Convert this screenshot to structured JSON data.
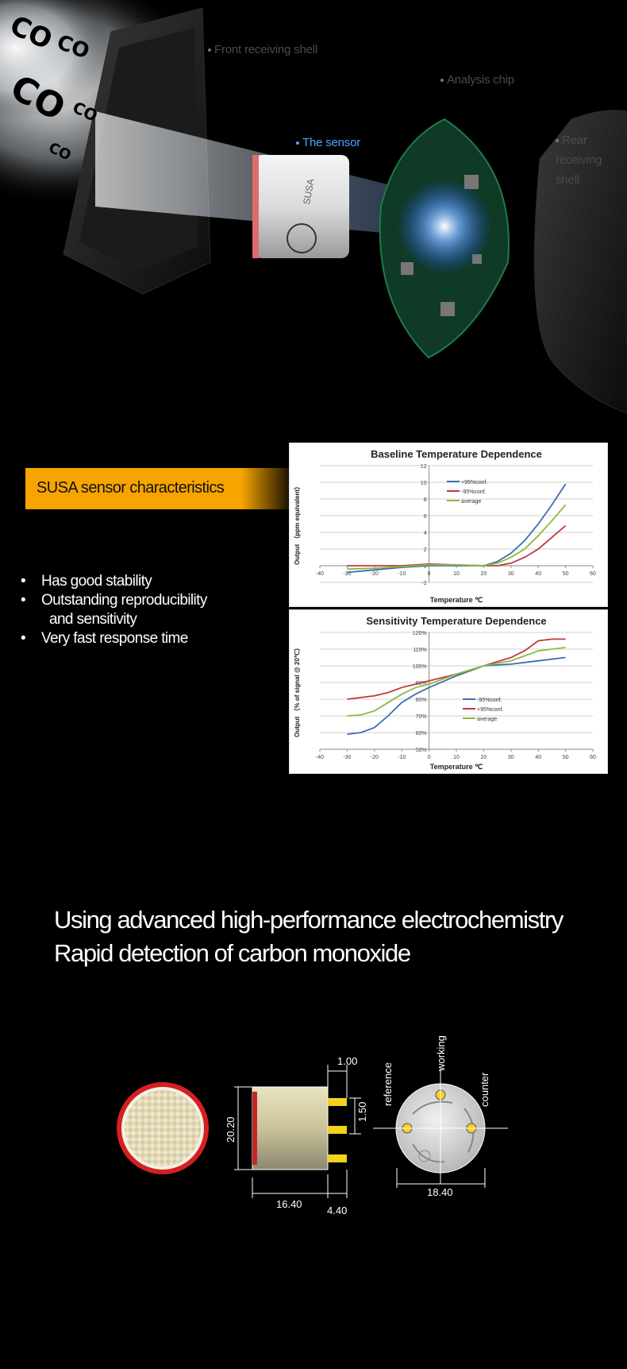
{
  "hero": {
    "callouts": {
      "front_shell": "Front receiving shell",
      "analysis_chip": "Analysis chip",
      "sensor": "The sensor",
      "rear_shell": "Rear receiving shell"
    },
    "gas_labels": [
      "CO",
      "CO",
      "CO",
      "CO",
      "CO"
    ],
    "sensor_brand": "SUSA",
    "highlight_color": "#4aa3ff"
  },
  "characteristics": {
    "banner": "SUSA sensor characteristics",
    "banner_color": "#f7a400",
    "features": [
      "Has good stability",
      "Outstanding reproducibility",
      "and sensitivity",
      "Very fast response time"
    ]
  },
  "chart_data": [
    {
      "type": "line",
      "title": "Baseline Temperature Dependence",
      "xlabel": "Temperature ℃",
      "ylabel": "Output （ppm equivalent）",
      "xlim": [
        -40,
        60
      ],
      "ylim": [
        -2,
        12
      ],
      "xticks": [
        "-40",
        "-30",
        "-20",
        "-10",
        "0",
        "10",
        "20",
        "30",
        "40",
        "50",
        "60"
      ],
      "yticks": [
        "-2",
        "0",
        "2",
        "4",
        "6",
        "8",
        "10",
        "12"
      ],
      "grid": true,
      "legend_position": "upper-middle",
      "series": [
        {
          "name": "+95%conf.",
          "color": "#3a6fb0",
          "x": [
            -30,
            -20,
            -10,
            0,
            10,
            20,
            25,
            30,
            35,
            40,
            45,
            50
          ],
          "y": [
            -0.8,
            -0.5,
            -0.2,
            0,
            0,
            0,
            0.5,
            1.5,
            3,
            5,
            7.3,
            9.8
          ]
        },
        {
          "name": "-95%conf.",
          "color": "#c0393b",
          "x": [
            -30,
            -20,
            -10,
            0,
            10,
            20,
            25,
            30,
            35,
            40,
            45,
            50
          ],
          "y": [
            0,
            0,
            0,
            0.2,
            0.1,
            0,
            0,
            0.3,
            1,
            2,
            3.4,
            4.8
          ]
        },
        {
          "name": "average",
          "color": "#8cba3e",
          "x": [
            -30,
            -20,
            -10,
            0,
            10,
            20,
            25,
            30,
            35,
            40,
            45,
            50
          ],
          "y": [
            -0.4,
            -0.3,
            -0.1,
            0.1,
            0.1,
            0,
            0.3,
            1,
            2,
            3.6,
            5.4,
            7.3
          ]
        }
      ]
    },
    {
      "type": "line",
      "title": "Sensitivity Temperature Dependence",
      "xlabel": "Temperature ℃",
      "ylabel": "Output （% of signal @ 20℃）",
      "xlim": [
        -40,
        60
      ],
      "ylim": [
        50,
        120
      ],
      "xticks": [
        "-40",
        "-30",
        "-20",
        "-10",
        "0",
        "10",
        "20",
        "30",
        "40",
        "50",
        "60"
      ],
      "yticks": [
        "50%",
        "60%",
        "70%",
        "80%",
        "90%",
        "100%",
        "110%",
        "120%"
      ],
      "grid": true,
      "legend_position": "right-middle",
      "series": [
        {
          "name": "-95%conf.",
          "color": "#3a6fb0",
          "x": [
            -30,
            -25,
            -20,
            -15,
            -10,
            -5,
            0,
            10,
            20,
            30,
            40,
            50
          ],
          "y": [
            59,
            60,
            63,
            70,
            78,
            83,
            87,
            94,
            100,
            101,
            103,
            105
          ]
        },
        {
          "name": "+95%conf.",
          "color": "#c0393b",
          "x": [
            -30,
            -25,
            -20,
            -15,
            -10,
            -5,
            0,
            10,
            20,
            30,
            35,
            40,
            45,
            50
          ],
          "y": [
            80,
            81,
            82,
            84,
            87,
            89,
            91,
            95,
            100,
            105,
            109,
            115,
            116,
            116
          ]
        },
        {
          "name": "average",
          "color": "#8cba3e",
          "x": [
            -30,
            -25,
            -20,
            -15,
            -10,
            -5,
            0,
            10,
            20,
            30,
            40,
            50
          ],
          "y": [
            70,
            70.5,
            73,
            78,
            83,
            87,
            89,
            95,
            100,
            103,
            109,
            111
          ]
        }
      ]
    }
  ],
  "headline": {
    "line1": "Using advanced high-performance electrochemistry",
    "line2": "Rapid detection of carbon monoxide"
  },
  "drawing": {
    "dims": {
      "pin_top": "1.00",
      "pin_spacing": "1.50",
      "height": "20.20",
      "body_length": "16.40",
      "pin_length": "4.40",
      "diameter": "18.40"
    },
    "pins": {
      "working": "working",
      "reference": "reference",
      "counter": "counter"
    },
    "face_color": "#d42020",
    "pin_color": "#f2d21c"
  }
}
